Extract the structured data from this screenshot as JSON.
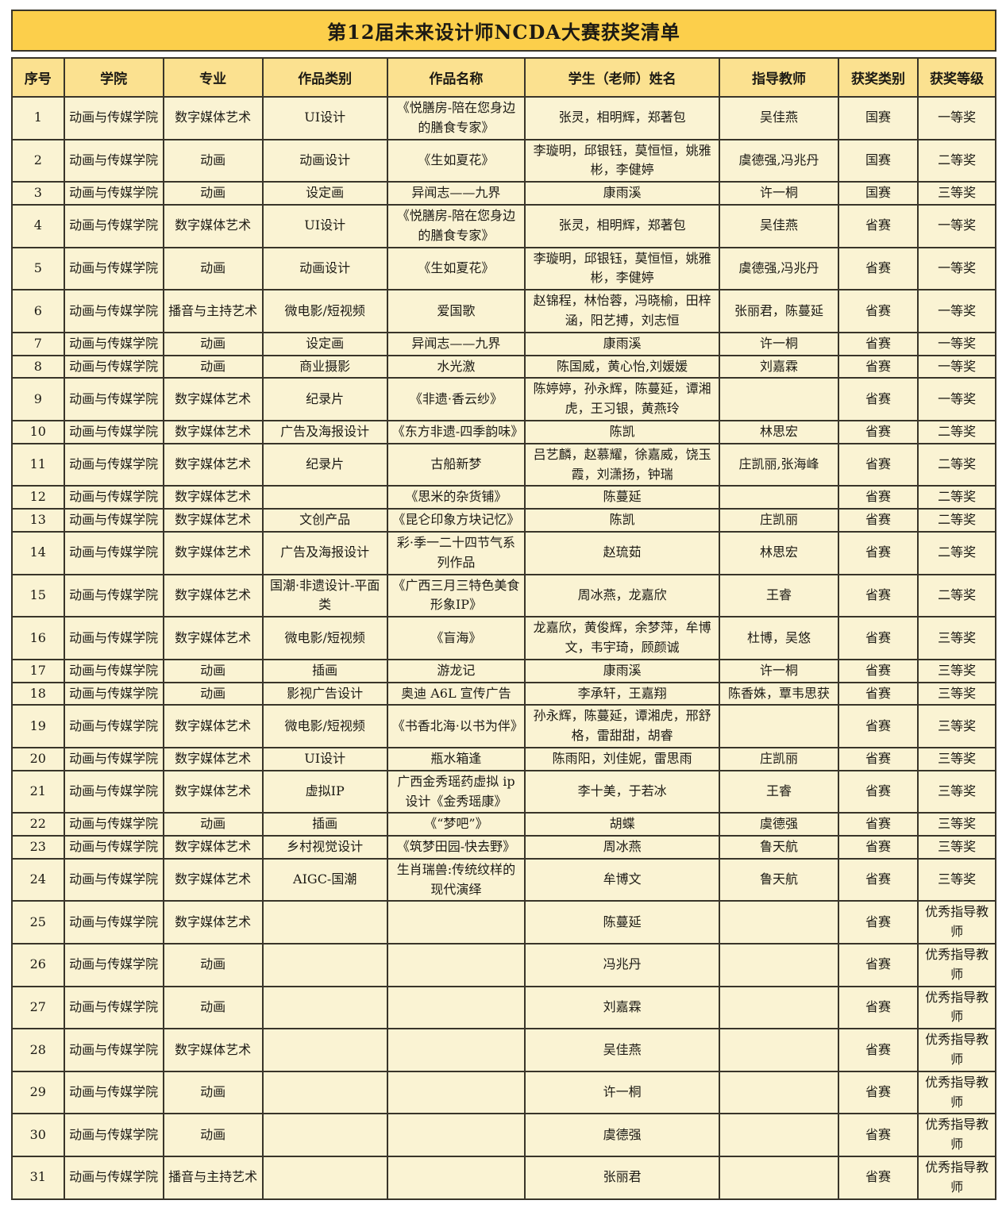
{
  "title": "第12届未来设计师NCDA大赛获奖清单",
  "colors": {
    "title_background": "#fccf4b",
    "header_background": "#fbe190",
    "cell_background": "#faf3d3",
    "border": "#39352a",
    "text": "#1c1a14"
  },
  "table": {
    "columns": [
      "序号",
      "学院",
      "专业",
      "作品类别",
      "作品名称",
      "学生（老师）姓名",
      "指导教师",
      "获奖类别",
      "获奖等级"
    ],
    "rows": [
      [
        "1",
        "动画与传媒学院",
        "数字媒体艺术",
        "UI设计",
        "《悦膳房-陪在您身边的膳食专家》",
        "张灵，相明辉，郑著包",
        "吴佳燕",
        "国赛",
        "一等奖"
      ],
      [
        "2",
        "动画与传媒学院",
        "动画",
        "动画设计",
        "《生如夏花》",
        "李璇明，邱银钰，莫恒恒，姚雅彬，李健婷",
        "虞德强,冯兆丹",
        "国赛",
        "二等奖"
      ],
      [
        "3",
        "动画与传媒学院",
        "动画",
        "设定画",
        "异闻志——九界",
        "康雨溪",
        "许一桐",
        "国赛",
        "三等奖"
      ],
      [
        "4",
        "动画与传媒学院",
        "数字媒体艺术",
        "UI设计",
        "《悦膳房-陪在您身边的膳食专家》",
        "张灵，相明辉，郑著包",
        "吴佳燕",
        "省赛",
        "一等奖"
      ],
      [
        "5",
        "动画与传媒学院",
        "动画",
        "动画设计",
        "《生如夏花》",
        "李璇明，邱银钰，莫恒恒，姚雅彬，李健婷",
        "虞德强,冯兆丹",
        "省赛",
        "一等奖"
      ],
      [
        "6",
        "动画与传媒学院",
        "播音与主持艺术",
        "微电影/短视频",
        "爱国歌",
        "赵锦程，林怡蓉，冯晓榆，田梓涵，阳艺搏，刘志恒",
        "张丽君，陈蔓延",
        "省赛",
        "一等奖"
      ],
      [
        "7",
        "动画与传媒学院",
        "动画",
        "设定画",
        "异闻志——九界",
        "康雨溪",
        "许一桐",
        "省赛",
        "一等奖"
      ],
      [
        "8",
        "动画与传媒学院",
        "动画",
        "商业摄影",
        "水光激",
        "陈国威，黄心怡,刘媛媛",
        "刘嘉霖",
        "省赛",
        "一等奖"
      ],
      [
        "9",
        "动画与传媒学院",
        "数字媒体艺术",
        "纪录片",
        "《非遗·香云纱》",
        "陈婷婷，孙永辉，陈蔓延，谭湘虎，王习银，黄燕玲",
        "",
        "省赛",
        "一等奖"
      ],
      [
        "10",
        "动画与传媒学院",
        "数字媒体艺术",
        "广告及海报设计",
        "《东方非遗-四季韵味》",
        "陈凯",
        "林思宏",
        "省赛",
        "二等奖"
      ],
      [
        "11",
        "动画与传媒学院",
        "数字媒体艺术",
        "纪录片",
        "古船新梦",
        "吕艺麟，赵慕耀，徐嘉威，饶玉霞，刘潇扬，钟瑞",
        "庄凯丽,张海峰",
        "省赛",
        "二等奖"
      ],
      [
        "12",
        "动画与传媒学院",
        "数字媒体艺术",
        "",
        "《思米的杂货铺》",
        "陈蔓延",
        "",
        "省赛",
        "二等奖"
      ],
      [
        "13",
        "动画与传媒学院",
        "数字媒体艺术",
        "文创产品",
        "《昆仑印象方块记忆》",
        "陈凯",
        "庄凯丽",
        "省赛",
        "二等奖"
      ],
      [
        "14",
        "动画与传媒学院",
        "数字媒体艺术",
        "广告及海报设计",
        "彩·季一二十四节气系列作品",
        "赵琉茹",
        "林思宏",
        "省赛",
        "二等奖"
      ],
      [
        "15",
        "动画与传媒学院",
        "数字媒体艺术",
        "国潮·非遗设计-平面类",
        "《广西三月三特色美食形象IP》",
        "周冰燕，龙嘉欣",
        "王睿",
        "省赛",
        "二等奖"
      ],
      [
        "16",
        "动画与传媒学院",
        "数字媒体艺术",
        "微电影/短视频",
        "《盲海》",
        "龙嘉欣，黄俊辉，余梦萍，牟博文，韦宇琦，顾颜诚",
        "杜博，吴悠",
        "省赛",
        "三等奖"
      ],
      [
        "17",
        "动画与传媒学院",
        "动画",
        "插画",
        "游龙记",
        "康雨溪",
        "许一桐",
        "省赛",
        "三等奖"
      ],
      [
        "18",
        "动画与传媒学院",
        "动画",
        "影视广告设计",
        "奥迪 A6L 宣传广告",
        "李承轩，王嘉翔",
        "陈香姝，覃韦思获",
        "省赛",
        "三等奖"
      ],
      [
        "19",
        "动画与传媒学院",
        "数字媒体艺术",
        "微电影/短视频",
        "《书香北海·以书为伴》",
        "孙永辉，陈蔓延，谭湘虎，邢舒格，雷甜甜，胡睿",
        "",
        "省赛",
        "三等奖"
      ],
      [
        "20",
        "动画与传媒学院",
        "数字媒体艺术",
        "UI设计",
        "瓶水箱逢",
        "陈雨阳，刘佳妮，雷思雨",
        "庄凯丽",
        "省赛",
        "三等奖"
      ],
      [
        "21",
        "动画与传媒学院",
        "数字媒体艺术",
        "虚拟IP",
        "广西金秀瑶药虚拟 ip 设计《金秀瑶康》",
        "李十美，于若冰",
        "王睿",
        "省赛",
        "三等奖"
      ],
      [
        "22",
        "动画与传媒学院",
        "动画",
        "插画",
        "《“梦吧”》",
        "胡蝶",
        "虞德强",
        "省赛",
        "三等奖"
      ],
      [
        "23",
        "动画与传媒学院",
        "数字媒体艺术",
        "乡村视觉设计",
        "《筑梦田园-快去野》",
        "周冰燕",
        "鲁天航",
        "省赛",
        "三等奖"
      ],
      [
        "24",
        "动画与传媒学院",
        "数字媒体艺术",
        "AIGC-国潮",
        "生肖瑞兽:传统纹样的现代演绎",
        "牟博文",
        "鲁天航",
        "省赛",
        "三等奖"
      ],
      [
        "25",
        "动画与传媒学院",
        "数字媒体艺术",
        "",
        "",
        "陈蔓延",
        "",
        "省赛",
        "优秀指导教师"
      ],
      [
        "26",
        "动画与传媒学院",
        "动画",
        "",
        "",
        "冯兆丹",
        "",
        "省赛",
        "优秀指导教师"
      ],
      [
        "27",
        "动画与传媒学院",
        "动画",
        "",
        "",
        "刘嘉霖",
        "",
        "省赛",
        "优秀指导教师"
      ],
      [
        "28",
        "动画与传媒学院",
        "数字媒体艺术",
        "",
        "",
        "吴佳燕",
        "",
        "省赛",
        "优秀指导教师"
      ],
      [
        "29",
        "动画与传媒学院",
        "动画",
        "",
        "",
        "许一桐",
        "",
        "省赛",
        "优秀指导教师"
      ],
      [
        "30",
        "动画与传媒学院",
        "动画",
        "",
        "",
        "虞德强",
        "",
        "省赛",
        "优秀指导教师"
      ],
      [
        "31",
        "动画与传媒学院",
        "播音与主持艺术",
        "",
        "",
        "张丽君",
        "",
        "省赛",
        "优秀指导教师"
      ]
    ]
  }
}
